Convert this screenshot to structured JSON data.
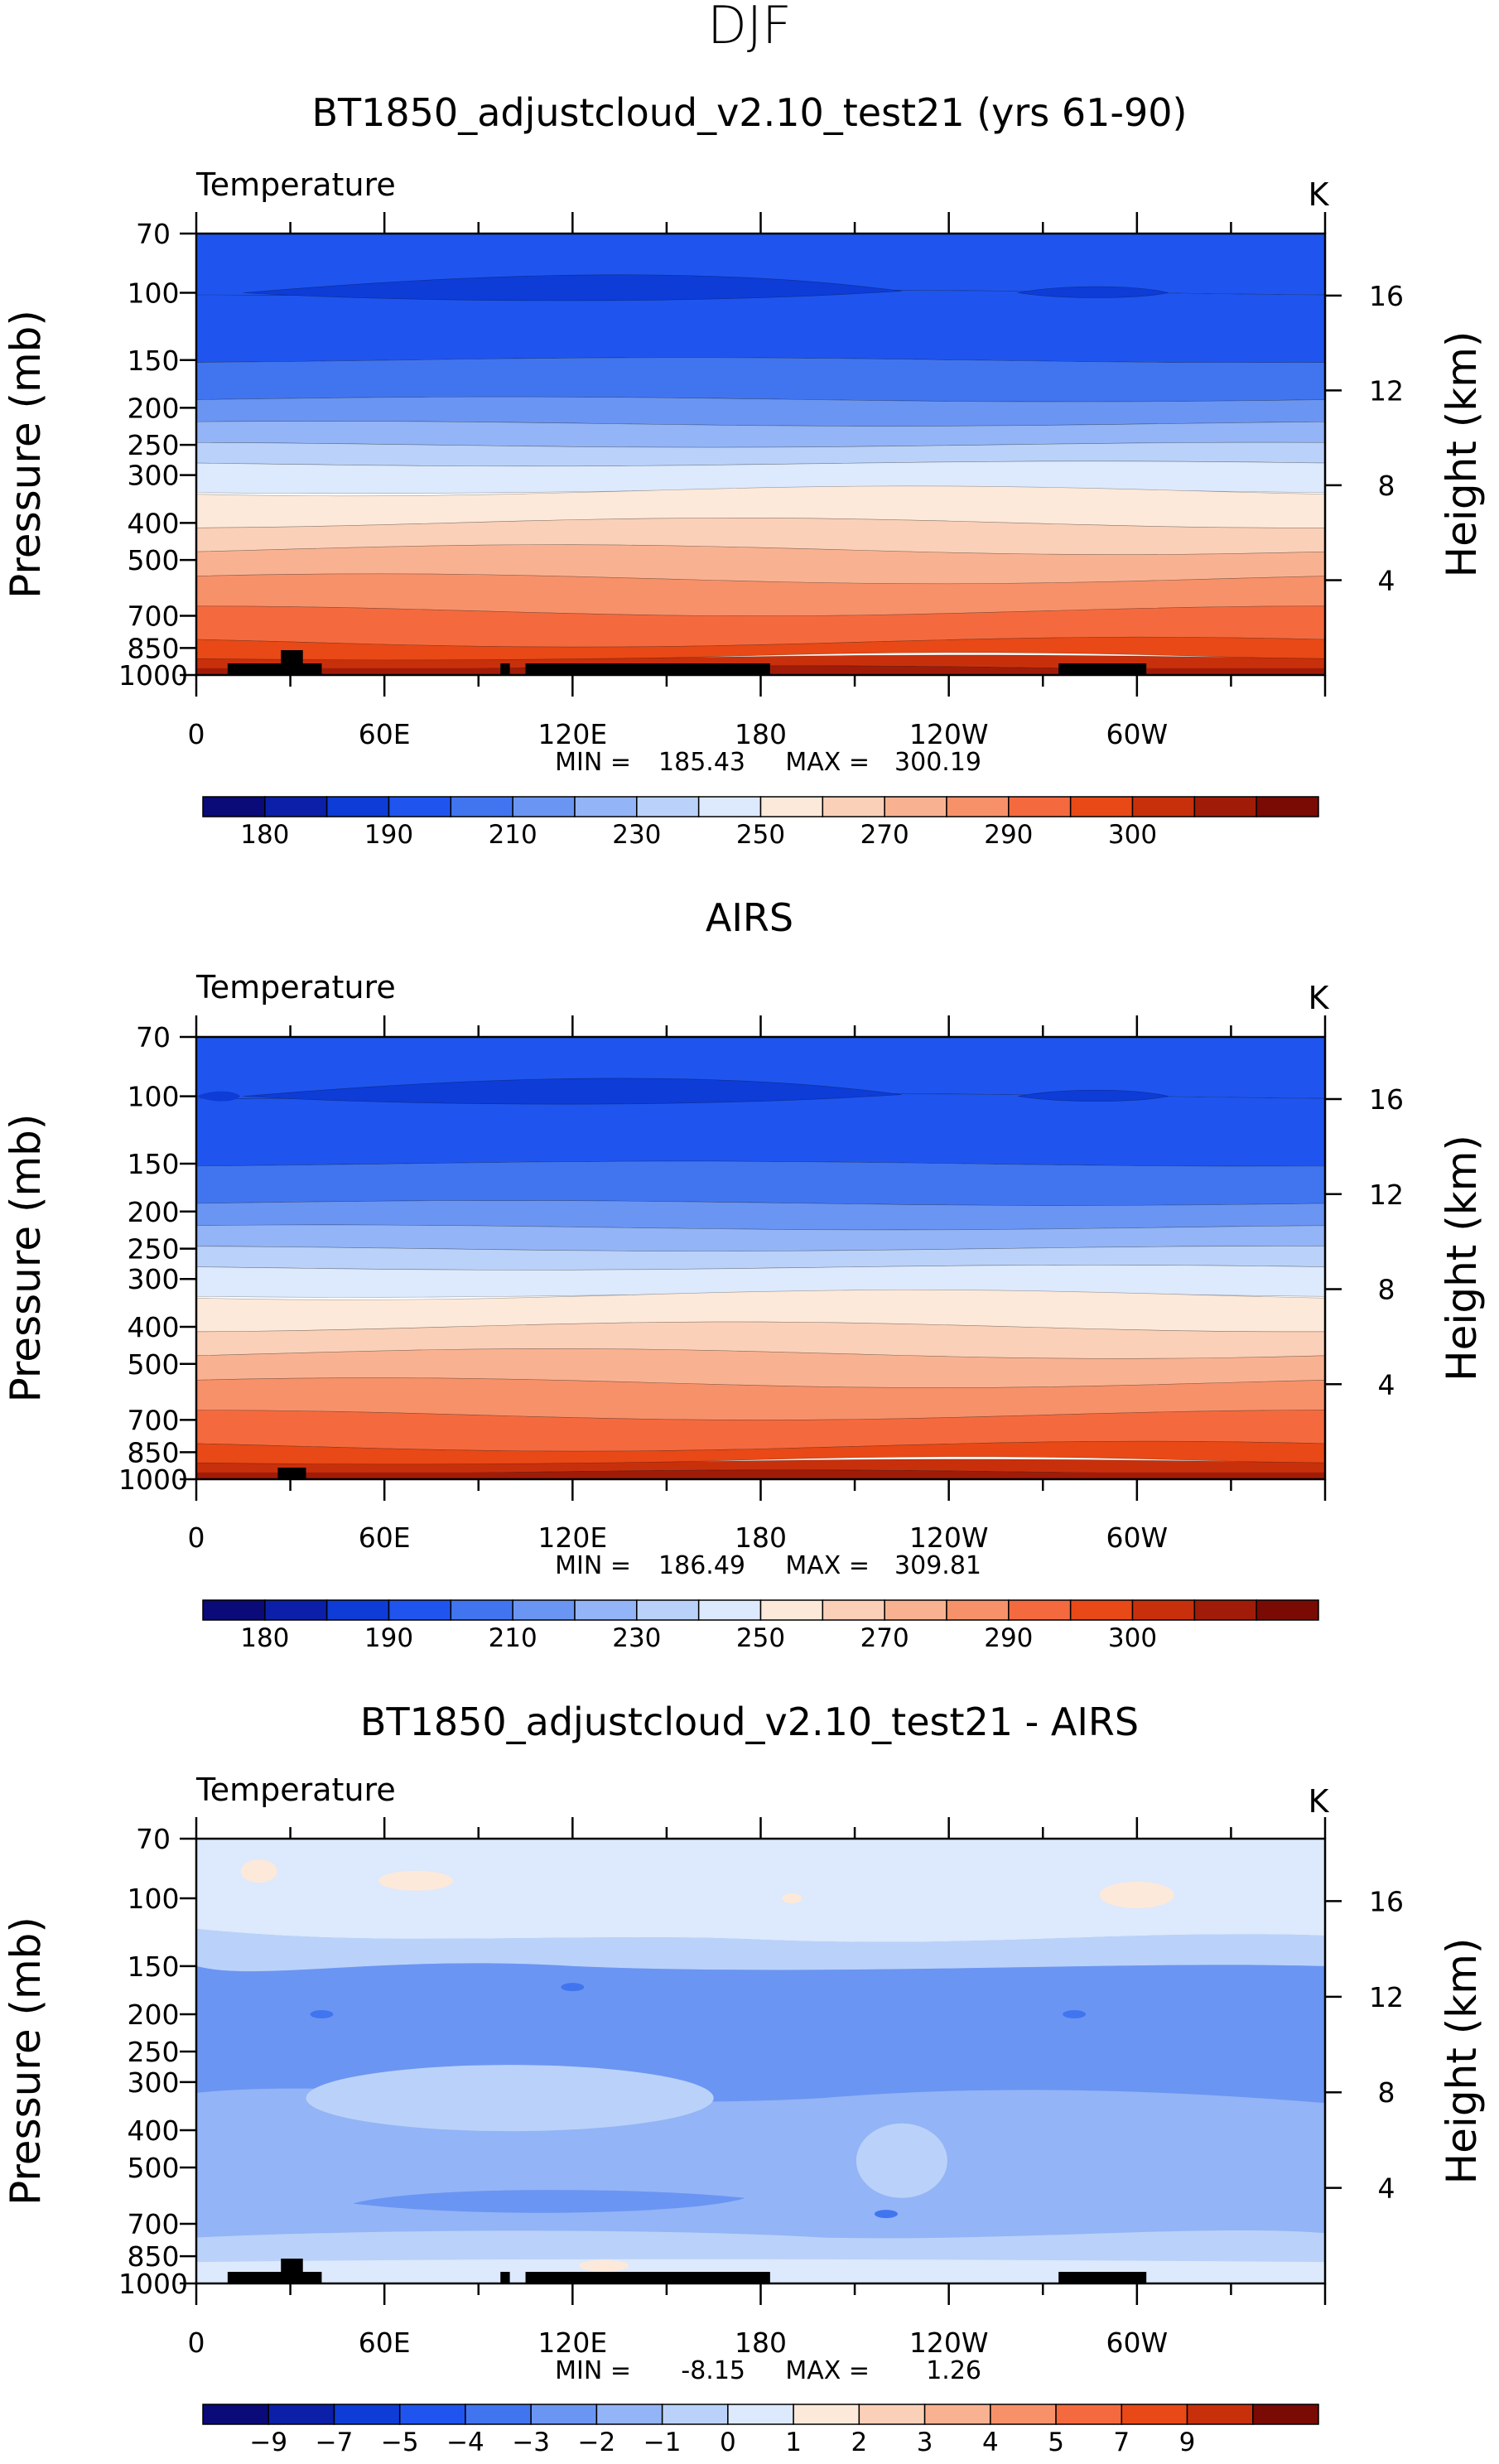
{
  "header": {
    "season": "DJF"
  },
  "chart_data": [
    {
      "type": "heatmap",
      "title": "BT1850_adjustcloud_v2.10_test21 (yrs 61-90)",
      "left_label": "Temperature",
      "right_label": "K",
      "ylabel": "Pressure (mb)",
      "y2label": "Height (km)",
      "yticks": [
        "70",
        "100",
        "150",
        "200",
        "250",
        "300",
        "400",
        "500",
        "700",
        "850",
        "1000"
      ],
      "y2ticks": [
        "16",
        "12",
        "8",
        "4"
      ],
      "xticks": [
        "0",
        "60E",
        "120E",
        "180",
        "120W",
        "60W"
      ],
      "min_label": "MIN =",
      "min_value": "185.43",
      "max_label": "MAX =",
      "max_value": "300.19",
      "colorbar_labels": [
        "180",
        "190",
        "210",
        "230",
        "250",
        "270",
        "290",
        "300"
      ],
      "colorbar_colors": [
        "#0a0a78",
        "#0b1fa8",
        "#0d3cd6",
        "#1f55ee",
        "#4175f0",
        "#6b95f2",
        "#93b4f6",
        "#bad2f9",
        "#dde9fc",
        "#fde9d9",
        "#fbd0b8",
        "#f9b291",
        "#f7916a",
        "#f46a3e",
        "#e84916",
        "#c8300c",
        "#a01c08",
        "#7a0a04"
      ],
      "bands_pressure_boundaries_mb": [
        100,
        150,
        190,
        220,
        250,
        280,
        330,
        400,
        470,
        560,
        680,
        820,
        900,
        960
      ]
    },
    {
      "type": "heatmap",
      "title": "AIRS",
      "left_label": "Temperature",
      "right_label": "K",
      "ylabel": "Pressure (mb)",
      "y2label": "Height (km)",
      "yticks": [
        "70",
        "100",
        "150",
        "200",
        "250",
        "300",
        "400",
        "500",
        "700",
        "850",
        "1000"
      ],
      "y2ticks": [
        "16",
        "12",
        "8",
        "4"
      ],
      "xticks": [
        "0",
        "60E",
        "120E",
        "180",
        "120W",
        "60W"
      ],
      "min_label": "MIN =",
      "min_value": "186.49",
      "max_label": "MAX =",
      "max_value": "309.81",
      "colorbar_labels": [
        "180",
        "190",
        "210",
        "230",
        "250",
        "270",
        "290",
        "300"
      ],
      "colorbar_colors": [
        "#0a0a78",
        "#0b1fa8",
        "#0d3cd6",
        "#1f55ee",
        "#4175f0",
        "#6b95f2",
        "#93b4f6",
        "#bad2f9",
        "#dde9fc",
        "#fde9d9",
        "#fbd0b8",
        "#f9b291",
        "#f7916a",
        "#f46a3e",
        "#e84916",
        "#c8300c",
        "#a01c08",
        "#7a0a04"
      ]
    },
    {
      "type": "heatmap",
      "title": "BT1850_adjustcloud_v2.10_test21 - AIRS",
      "left_label": "Temperature",
      "right_label": "K",
      "ylabel": "Pressure (mb)",
      "y2label": "Height (km)",
      "yticks": [
        "70",
        "100",
        "150",
        "200",
        "250",
        "300",
        "400",
        "500",
        "700",
        "850",
        "1000"
      ],
      "y2ticks": [
        "16",
        "12",
        "8",
        "4"
      ],
      "xticks": [
        "0",
        "60E",
        "120E",
        "180",
        "120W",
        "60W"
      ],
      "min_label": "MIN =",
      "min_value": "-8.15",
      "max_label": "MAX =",
      "max_value": "1.26",
      "colorbar_labels": [
        "−9",
        "−7",
        "−5",
        "−4",
        "−3",
        "−2",
        "−1",
        "0",
        "1",
        "2",
        "3",
        "4",
        "5",
        "7",
        "9"
      ],
      "colorbar_colors": [
        "#0a0a78",
        "#0b1fa8",
        "#0d3cd6",
        "#1f55ee",
        "#4175f0",
        "#6b95f2",
        "#93b4f6",
        "#bad2f9",
        "#dde9fc",
        "#fde9d9",
        "#fbd0b8",
        "#f9b291",
        "#f7916a",
        "#f46a3e",
        "#e84916",
        "#c8300c",
        "#7a0a04"
      ]
    }
  ]
}
